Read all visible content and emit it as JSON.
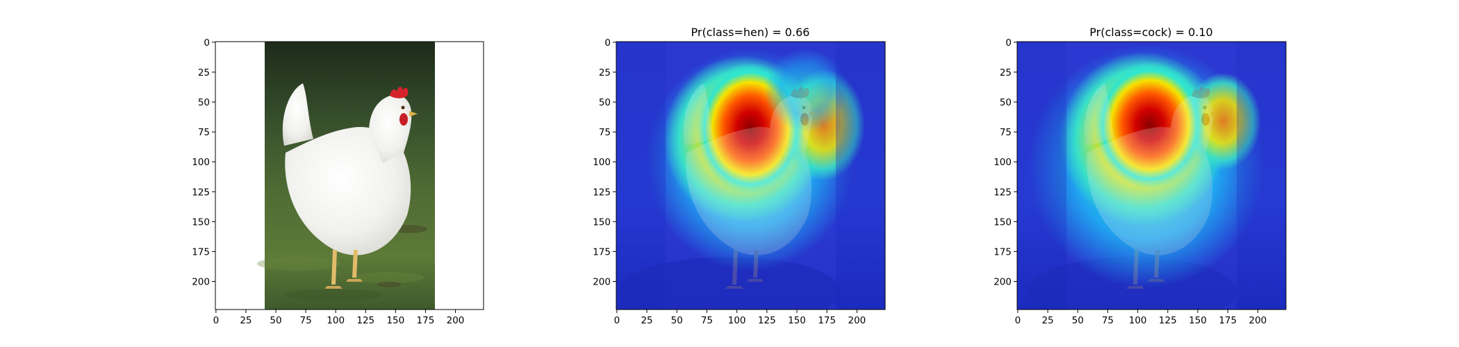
{
  "figure": {
    "panels": [
      {
        "id": "original",
        "title": "",
        "image": "photograph of a white hen with red comb standing on green grass",
        "x_ticks": [
          "0",
          "25",
          "50",
          "75",
          "100",
          "125",
          "150",
          "175",
          "200"
        ],
        "y_ticks": [
          "0",
          "25",
          "50",
          "75",
          "100",
          "125",
          "150",
          "175",
          "200"
        ]
      },
      {
        "id": "heatmap-hen",
        "title": "Pr(class=hen) =  0.66",
        "image": "jet colormap class activation heatmap overlaid on the hen photo, hottest over the hen's neck and breast",
        "x_ticks": [
          "0",
          "25",
          "50",
          "75",
          "100",
          "125",
          "150",
          "175",
          "200"
        ],
        "y_ticks": [
          "0",
          "25",
          "50",
          "75",
          "100",
          "125",
          "150",
          "175",
          "200"
        ]
      },
      {
        "id": "heatmap-cock",
        "title": "Pr(class=cock) =  0.10",
        "image": "jet colormap class activation heatmap overlaid on the hen photo, hottest over the hen's neck and breast",
        "x_ticks": [
          "0",
          "25",
          "50",
          "75",
          "100",
          "125",
          "150",
          "175",
          "200"
        ],
        "y_ticks": [
          "0",
          "25",
          "50",
          "75",
          "100",
          "125",
          "150",
          "175",
          "200"
        ]
      }
    ]
  },
  "colors": {
    "jet_red": "#b10000",
    "jet_orange": "#ff6a00",
    "jet_yellow": "#f5e400",
    "jet_cyan": "#2ee6d2",
    "jet_blue": "#2a35d8",
    "jet_dark_blue": "#0a10a8",
    "hen_white": "#f4f4f2",
    "comb_red": "#d4222a",
    "grass_green": "#4f6b34"
  }
}
